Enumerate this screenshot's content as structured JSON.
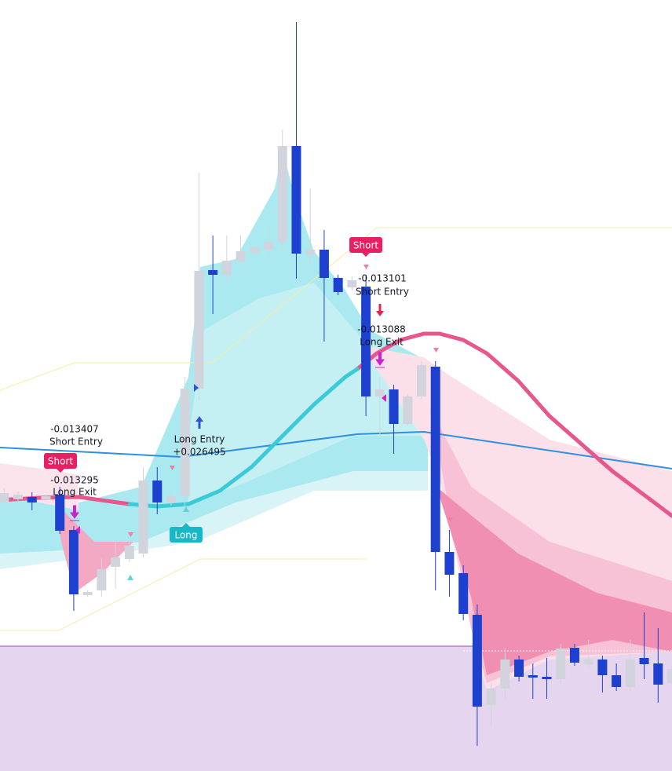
{
  "chart_data": {
    "type": "candlestick",
    "x": [
      0,
      1,
      2,
      3,
      4,
      5,
      6,
      7,
      8,
      9,
      10,
      11,
      12,
      13,
      14,
      15,
      16,
      17,
      18,
      19,
      20,
      21,
      22,
      23,
      24,
      25,
      26,
      27,
      28,
      29,
      30,
      31,
      32,
      33,
      34,
      35,
      36,
      37,
      38,
      39,
      40,
      41,
      42,
      43,
      44,
      45,
      46,
      47,
      48
    ],
    "open": [
      342,
      346,
      349,
      346,
      352,
      307,
      224,
      230,
      260,
      270,
      277,
      370,
      342,
      350,
      487,
      638,
      632,
      649,
      660,
      664,
      674,
      796,
      658,
      664,
      628,
      616,
      617,
      477,
      486,
      442,
      477,
      515,
      279,
      252,
      199,
      84,
      105,
      142,
      122,
      120,
      117,
      157,
      136,
      142,
      122,
      107,
      144,
      137,
      112
    ],
    "high": [
      360,
      356,
      355,
      352,
      362,
      312,
      230,
      272,
      292,
      292,
      387,
      387,
      356,
      502,
      762,
      682,
      682,
      682,
      672,
      692,
      817,
      954,
      742,
      689,
      632,
      630,
      632,
      502,
      492,
      480,
      522,
      522,
      307,
      262,
      212,
      112,
      157,
      147,
      137,
      144,
      162,
      162,
      167,
      147,
      137,
      167,
      202,
      182,
      135
    ],
    "low": [
      338,
      340,
      332,
      344,
      302,
      204,
      222,
      222,
      232,
      266,
      272,
      327,
      338,
      332,
      472,
      582,
      622,
      642,
      656,
      652,
      662,
      627,
      642,
      547,
      606,
      612,
      452,
      427,
      404,
      440,
      474,
      230,
      222,
      192,
      32,
      57,
      92,
      114,
      92,
      92,
      112,
      134,
      132,
      100,
      102,
      102,
      117,
      87,
      108
    ],
    "close": [
      354,
      352,
      342,
      350,
      306,
      225,
      228,
      257,
      272,
      287,
      370,
      342,
      350,
      487,
      637,
      632,
      650,
      662,
      667,
      674,
      796,
      659,
      664,
      628,
      610,
      625,
      477,
      486,
      442,
      477,
      517,
      279,
      250,
      200,
      82,
      105,
      142,
      120,
      119,
      117,
      156,
      138,
      142,
      122,
      107,
      142,
      136,
      110,
      130
    ],
    "up_color": "#d1d4dc",
    "down_color": "#1e40cf",
    "xlim": [
      -0.3,
      48
    ],
    "ylim": [
      0,
      982
    ],
    "lines": [
      {
        "color": "#2f8fe0",
        "x": [
          -0.28,
          12.7,
          25.38,
          30.17,
          48
        ],
        "values": [
          412,
          400,
          429,
          432,
          385
        ]
      },
      {
        "color": "#e8578c",
        "x": [
          -0.28,
          2.54,
          5.36,
          8.18,
          9.02,
          11,
          13.25,
          15.51,
          17.77,
          20.02,
          22.28,
          24.53,
          25.38,
          26.79,
          28.48,
          30.17,
          31.3,
          32.99,
          34.69,
          36.94,
          39.2,
          41.45,
          43.71,
          45.97,
          48
        ],
        "values": [
          345,
          348,
          349,
          342,
          340,
          null,
          null,
          null,
          null,
          null,
          null,
          null,
          512,
          532,
          549,
          557,
          557,
          549,
          532,
          497,
          452,
          417,
          382,
          352,
          325
        ]
      },
      {
        "color": "#3ccad8",
        "x": [
          -0.28,
          2.54,
          5.36,
          8.18,
          9.02,
          11,
          13.25,
          15.51,
          17.77,
          20.02,
          22.28,
          24.53,
          25.38,
          26.79,
          28.48,
          30.17,
          31.3,
          32.99,
          34.69,
          36.94,
          39.2,
          41.45,
          43.71,
          45.97,
          48
        ],
        "values": [
          null,
          null,
          null,
          null,
          340,
          337,
          340,
          357,
          387,
          427,
          467,
          502,
          512,
          null,
          null,
          null,
          null,
          null,
          null,
          null,
          null,
          null,
          null,
          null,
          null
        ]
      }
    ],
    "annotations": [
      "-0.013407",
      "Short Entry",
      "-0.013295",
      "Long Exit",
      "Long Entry",
      "+0.026495",
      "-0.013101",
      "Short Entry",
      "-0.013088",
      "Long Exit"
    ],
    "signals": [
      "Short",
      "Long",
      "Short"
    ]
  }
}
